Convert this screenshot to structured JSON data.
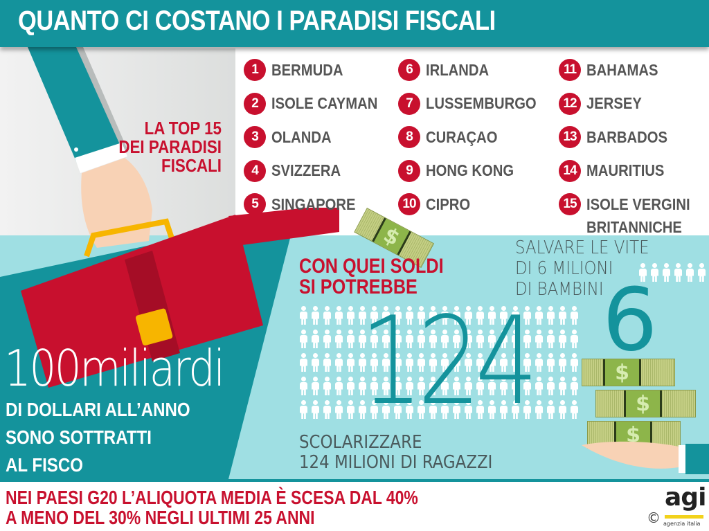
{
  "header": {
    "title": "QUANTO CI COSTANO I PARADISI FISCALI"
  },
  "top15": {
    "heading_lines": [
      "LA TOP 15",
      "DEI PARADISI",
      "FISCALI"
    ]
  },
  "ranking": [
    {
      "rank": "1",
      "name": "BERMUDA"
    },
    {
      "rank": "2",
      "name": "ISOLE CAYMAN"
    },
    {
      "rank": "3",
      "name": "OLANDA"
    },
    {
      "rank": "4",
      "name": "SVIZZERA"
    },
    {
      "rank": "5",
      "name": "SINGAPORE"
    },
    {
      "rank": "6",
      "name": "IRLANDA"
    },
    {
      "rank": "7",
      "name": "LUSSEMBURGO"
    },
    {
      "rank": "8",
      "name": "CURAÇAO"
    },
    {
      "rank": "9",
      "name": "HONG KONG"
    },
    {
      "rank": "10",
      "name": "CIPRO"
    },
    {
      "rank": "11",
      "name": "BAHAMAS"
    },
    {
      "rank": "12",
      "name": "JERSEY"
    },
    {
      "rank": "13",
      "name": "BARBADOS"
    },
    {
      "rank": "14",
      "name": "MAURITIUS"
    },
    {
      "rank": "15",
      "name": "ISOLE VERGINI",
      "name_line2": "BRITANNICHE"
    }
  ],
  "main_stat": {
    "value": "100miliardi",
    "lines": [
      "DI DOLLARI ALL’ANNO",
      "SONO SOTTRATTI",
      "AL FISCO"
    ]
  },
  "could": {
    "heading_lines": [
      "CON QUEI SOLDI",
      "SI POTREBBE"
    ],
    "save": {
      "lines": [
        "SALVARE LE VITE",
        "DI 6 MILIONI",
        "DI BAMBINI"
      ],
      "number": "6"
    },
    "school": {
      "lines": [
        "SCOLARIZZARE",
        "124 MILIONI DI RAGAZZI"
      ],
      "number": "124"
    }
  },
  "footer": {
    "lines": [
      "NEI PAESI G20 L’ALIQUOTA MEDIA È SCESA DAL 40%",
      "A MENO DEL 30%  NEGLI ULTIMI 25 ANNI"
    ],
    "logo": "agi",
    "logo_sub": "agenzia italia",
    "copyright": "©"
  },
  "colors": {
    "teal": "#14939c",
    "light_teal": "#9fdfe3",
    "red": "#c8102e",
    "gray_text": "#555555",
    "yellow": "#f2d21b"
  }
}
